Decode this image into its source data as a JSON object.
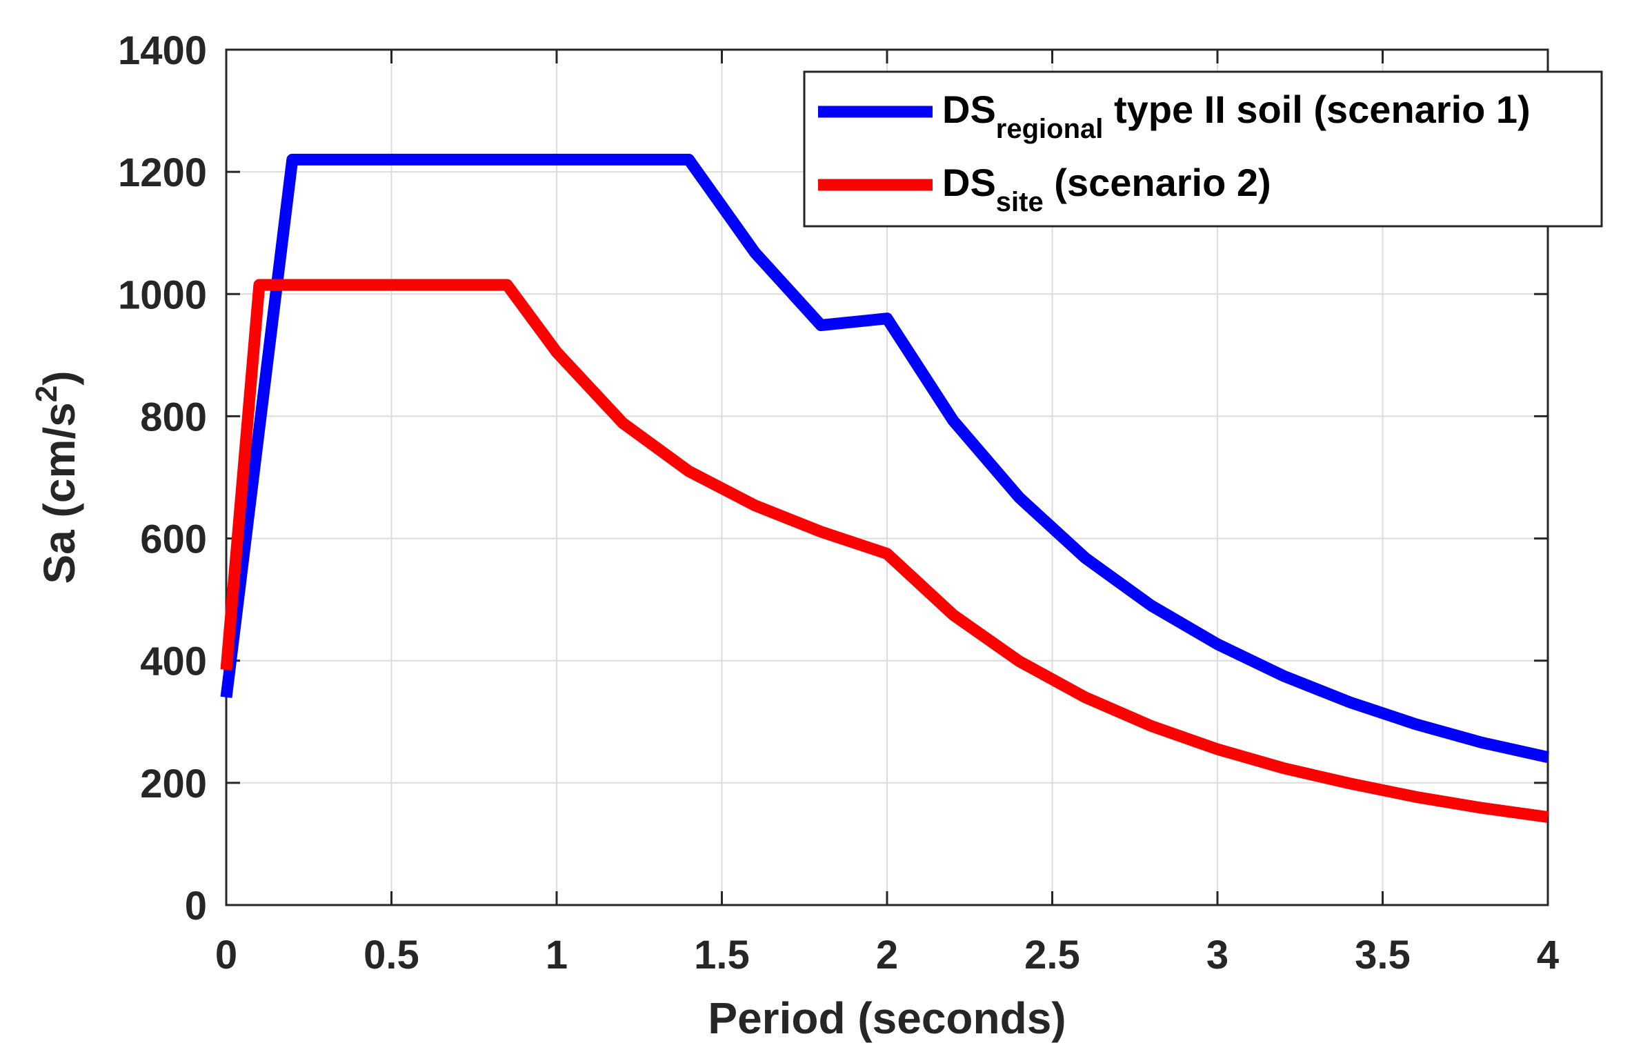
{
  "chart_data": {
    "type": "line",
    "title": "",
    "xlabel": "Period (seconds)",
    "ylabel": {
      "prefix": "Sa (cm/s",
      "superscript": "2",
      "suffix": ")"
    },
    "xlim": [
      0,
      4
    ],
    "ylim": [
      0,
      1400
    ],
    "x_ticks": [
      0,
      0.5,
      1,
      1.5,
      2,
      2.5,
      3,
      3.5,
      4
    ],
    "x_tick_labels": [
      "0",
      "0.5",
      "1",
      "1.5",
      "2",
      "2.5",
      "3",
      "3.5",
      "4"
    ],
    "y_ticks": [
      0,
      200,
      400,
      600,
      800,
      1000,
      1200,
      1400
    ],
    "y_tick_labels": [
      "0",
      "200",
      "400",
      "600",
      "800",
      "1000",
      "1200",
      "1400"
    ],
    "grid": true,
    "legend_position": "top-right",
    "series": [
      {
        "name": "DS regional type II soil (scenario 1)",
        "legend": {
          "main": "DS",
          "sub": "regional",
          "rest": " type II soil (scenario 1)"
        },
        "color": "#0000ff",
        "x": [
          0,
          0.2,
          1.4,
          1.6,
          1.8,
          2.0,
          2.2,
          2.4,
          2.6,
          2.8,
          3.0,
          3.2,
          3.4,
          3.6,
          3.8,
          4.0
        ],
        "y": [
          340,
          1220,
          1220,
          1068,
          949,
          960,
          793,
          667,
          568,
          490,
          427,
          375,
          332,
          296,
          266,
          242
        ]
      },
      {
        "name": "DS site (scenario 2)",
        "legend": {
          "main": "DS",
          "sub": "site",
          "rest": " (scenario 2)"
        },
        "color": "#ff0000",
        "x": [
          0,
          0.1,
          0.85,
          1.0,
          1.2,
          1.4,
          1.6,
          1.8,
          2.0,
          2.2,
          2.4,
          2.6,
          2.8,
          3.0,
          3.2,
          3.4,
          3.6,
          3.8,
          4.0
        ],
        "y": [
          385,
          1015,
          1015,
          905,
          789,
          710,
          654,
          611,
          575,
          475,
          399,
          340,
          293,
          255,
          224,
          199,
          177,
          159,
          144
        ]
      }
    ]
  }
}
